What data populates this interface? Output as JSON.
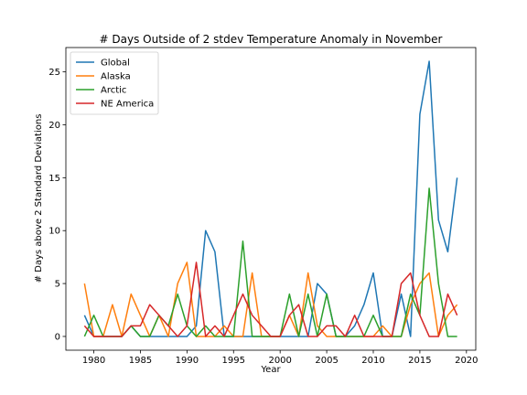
{
  "chart_data": {
    "type": "line",
    "title": "# Days Outside of 2 stdev Temperature Anomaly in November",
    "xlabel": "Year",
    "ylabel": "# Days above 2 Standard Deviations",
    "xlim": [
      1977,
      2021
    ],
    "ylim": [
      -1.3,
      27.3
    ],
    "xticks": [
      1980,
      1985,
      1990,
      1995,
      2000,
      2005,
      2010,
      2015,
      2020
    ],
    "yticks": [
      0,
      5,
      10,
      15,
      20,
      25
    ],
    "legend_position": "top-left",
    "grid": false,
    "x": [
      1979,
      1980,
      1981,
      1982,
      1983,
      1984,
      1985,
      1986,
      1987,
      1988,
      1989,
      1990,
      1991,
      1992,
      1993,
      1994,
      1995,
      1996,
      1997,
      1998,
      1999,
      2000,
      2001,
      2002,
      2003,
      2004,
      2005,
      2006,
      2007,
      2008,
      2009,
      2010,
      2011,
      2012,
      2013,
      2014,
      2015,
      2016,
      2017,
      2018,
      2019
    ],
    "series": [
      {
        "name": "Global",
        "color": "#1f77b4",
        "values": [
          2,
          0,
          0,
          0,
          0,
          1,
          0,
          0,
          0,
          0,
          0,
          0,
          1,
          10,
          8,
          0,
          0,
          0,
          0,
          0,
          0,
          0,
          0,
          0,
          0,
          5,
          4,
          0,
          0,
          1,
          3,
          6,
          0,
          0,
          4,
          0,
          21,
          26,
          11,
          8,
          15
        ]
      },
      {
        "name": "Alaska",
        "color": "#ff7f0e",
        "values": [
          5,
          0,
          0,
          3,
          0,
          4,
          2,
          0,
          2,
          0,
          5,
          7,
          0,
          0,
          0,
          1,
          0,
          0,
          6,
          0,
          0,
          0,
          2,
          0,
          6,
          1,
          0,
          0,
          0,
          0,
          0,
          0,
          1,
          0,
          0,
          3,
          5,
          6,
          0,
          2,
          3
        ]
      },
      {
        "name": "Arctic",
        "color": "#2ca02c",
        "values": [
          0,
          2,
          0,
          0,
          0,
          1,
          0,
          0,
          2,
          1,
          4,
          1,
          0,
          1,
          0,
          0,
          0,
          9,
          0,
          0,
          0,
          0,
          4,
          0,
          4,
          0,
          4,
          0,
          0,
          0,
          0,
          2,
          0,
          0,
          0,
          4,
          2,
          14,
          5,
          0,
          0
        ]
      },
      {
        "name": "NE America",
        "color": "#d62728",
        "values": [
          1,
          0,
          0,
          0,
          0,
          1,
          1,
          3,
          2,
          1,
          0,
          1,
          7,
          0,
          1,
          0,
          2,
          4,
          2,
          1,
          0,
          0,
          2,
          3,
          0,
          0,
          1,
          1,
          0,
          2,
          0,
          0,
          0,
          0,
          5,
          6,
          2,
          0,
          0,
          4,
          2
        ]
      }
    ]
  }
}
